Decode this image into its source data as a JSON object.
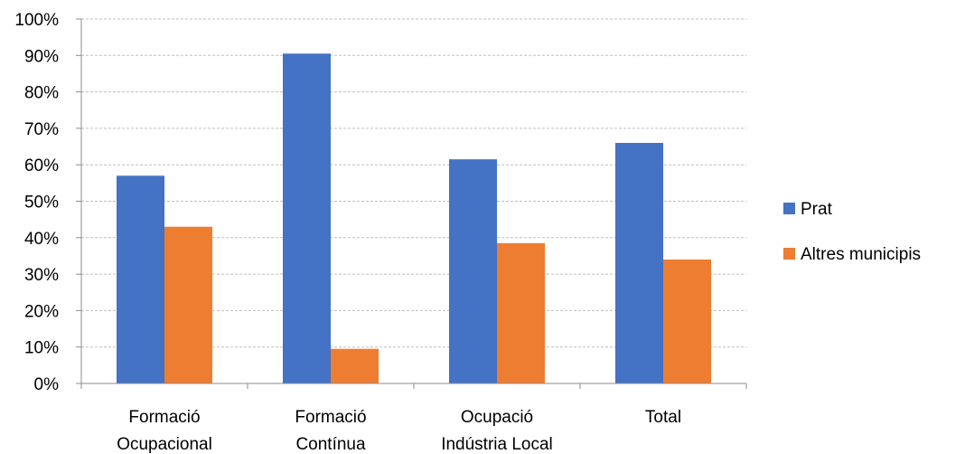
{
  "chart_data": {
    "type": "bar",
    "title": "",
    "xlabel": "",
    "ylabel": "",
    "categories": [
      [
        "Formació",
        "Ocupacional"
      ],
      [
        "Formació",
        "Contínua"
      ],
      [
        "Ocupació",
        "Indústria Local"
      ],
      [
        "Total"
      ]
    ],
    "series": [
      {
        "name": "Prat",
        "color": "#4472C4",
        "values": [
          57,
          90.5,
          61.5,
          66
        ]
      },
      {
        "name": "Altres municipis",
        "color": "#ED7D31",
        "values": [
          43,
          9.5,
          38.5,
          34
        ]
      }
    ],
    "ylim": [
      0,
      100
    ],
    "yticks": [
      0,
      10,
      20,
      30,
      40,
      50,
      60,
      70,
      80,
      90,
      100
    ],
    "ytick_format": "percent",
    "grid": "horizontal-dashed",
    "legend_position": "right"
  }
}
